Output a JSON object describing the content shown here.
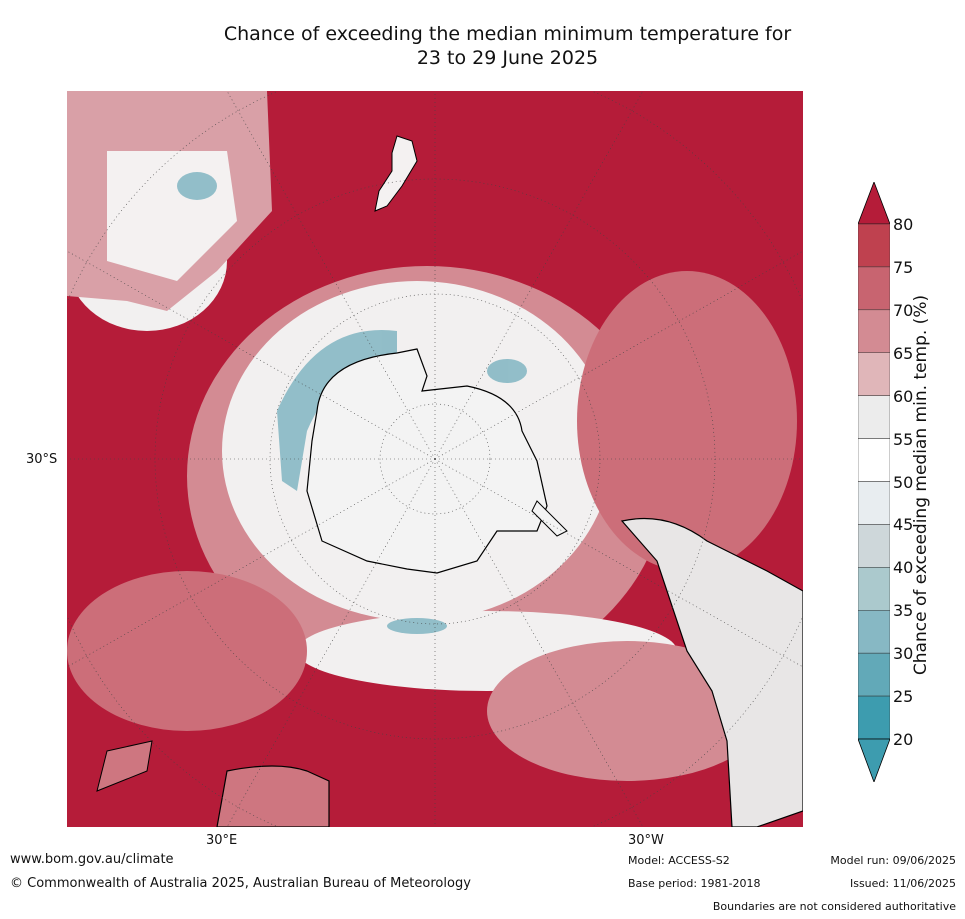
{
  "title_line1": "Chance of exceeding the median minimum temperature for",
  "title_line2": "23 to 29 June 2025",
  "map": {
    "projection": "south-polar",
    "lat_label": "30°S",
    "lon_labels": [
      "30°E",
      "30°W"
    ],
    "dominant_color": "#b51c39"
  },
  "colorbar": {
    "label": "Chance of exceeding median min. temp. (%)",
    "ticks": [
      "80",
      "75",
      "70",
      "65",
      "60",
      "55",
      "50",
      "45",
      "40",
      "35",
      "30",
      "25",
      "20"
    ],
    "colors": [
      "#b51c39",
      "#bf414f",
      "#c86470",
      "#d38b93",
      "#e0b6b9",
      "#ececec",
      "#ffffff",
      "#e8edf0",
      "#ced7da",
      "#abc9cd",
      "#87b8c4",
      "#62a9b8",
      "#3d9caf"
    ]
  },
  "footer": {
    "website": "www.bom.gov.au/climate",
    "copyright": "© Commonwealth of Australia 2025, Australian Bureau of Meteorology",
    "model": "Model: ACCESS-S2",
    "base_period": "Base period: 1981-2018",
    "model_run": "Model run: 09/06/2025",
    "issued": "Issued: 11/06/2025",
    "disclaimer": "Boundaries are not considered authoritative"
  }
}
